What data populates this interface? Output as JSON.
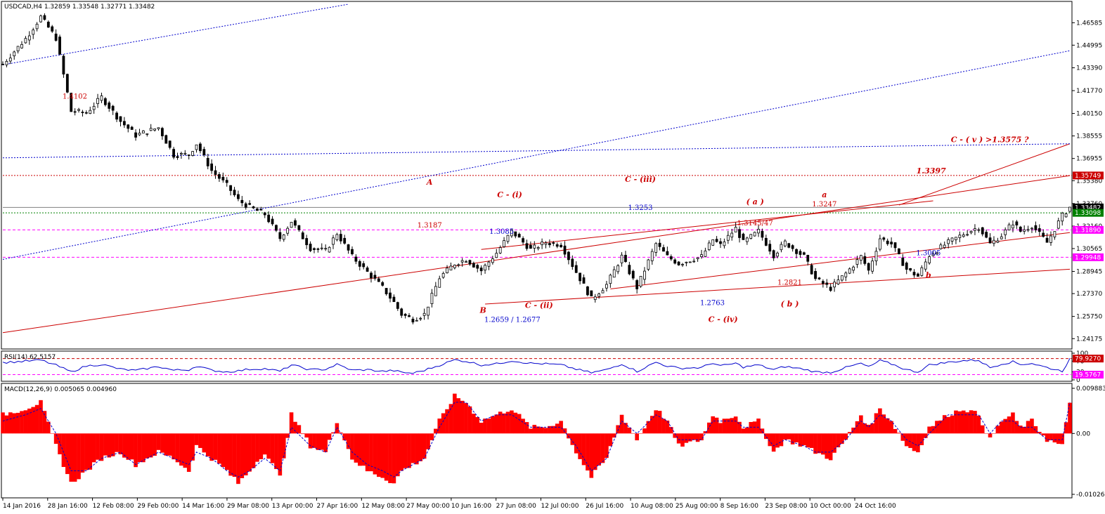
{
  "chart_data": [
    {
      "type": "line",
      "subtype": "candlestick",
      "title": "USDCAD,H4  1.32859 1.33548 1.32771 1.33482",
      "symbol": "USDCAD",
      "timeframe": "H4",
      "ohlc_last": {
        "open": 1.32859,
        "high": 1.33548,
        "low": 1.32771,
        "close": 1.33482
      },
      "ylim": [
        1.2359,
        1.479
      ],
      "y_ticks": [
        "1.46585",
        "1.44995",
        "1.43390",
        "1.41770",
        "1.40150",
        "1.38555",
        "1.36955",
        "1.35380",
        "1.33760",
        "1.32160",
        "1.30565",
        "1.28945",
        "1.27370",
        "1.25750",
        "1.24175"
      ],
      "x_ticks": [
        "14 Jan 2016",
        "28 Jan 16:00",
        "12 Feb 08:00",
        "29 Feb 00:00",
        "14 Mar 16:00",
        "29 Mar 08:00",
        "13 Apr 00:00",
        "27 Apr 16:00",
        "12 May 08:00",
        "27 May 00:00",
        "10 Jun 16:00",
        "27 Jun 08:00",
        "12 Jul 00:00",
        "26 Jul 16:00",
        "10 Aug 08:00",
        "25 Aug 00:00",
        "8 Sep 16:00",
        "23 Sep 08:00",
        "10 Oct 00:00",
        "24 Oct 16:00"
      ],
      "x_tick_index": [
        0,
        1,
        2,
        3,
        4,
        5,
        6,
        7,
        8,
        9,
        10,
        11,
        12,
        13,
        14,
        15,
        16,
        17,
        18,
        19
      ],
      "n_points": 282,
      "series": [
        {
          "color": "#000000",
          "x_bar_index_sample": [
            0,
            6,
            10,
            14,
            18,
            22,
            26,
            31,
            35,
            41,
            45,
            49,
            51,
            55,
            59,
            62,
            65,
            69,
            73,
            76,
            81,
            85,
            88,
            92,
            96,
            100,
            103,
            105,
            108,
            111,
            115,
            119,
            122,
            126,
            130,
            134,
            139,
            143,
            147,
            151,
            155,
            159,
            163,
            167,
            172,
            175,
            178,
            184,
            187,
            189,
            193,
            195,
            199,
            203,
            206,
            211,
            214,
            218,
            222,
            226,
            228,
            231,
            234,
            238,
            241,
            244,
            249,
            253,
            257,
            260,
            263,
            266,
            268,
            271,
            275,
            279,
            281
          ],
          "values": [
            1.4365,
            1.4545,
            1.47,
            1.455,
            1.403,
            1.402,
            1.413,
            1.396,
            1.386,
            1.3915,
            1.372,
            1.3725,
            1.38,
            1.361,
            1.3505,
            1.34,
            1.335,
            1.33,
            1.313,
            1.325,
            1.306,
            1.304,
            1.3165,
            1.3,
            1.289,
            1.278,
            1.2675,
            1.259,
            1.2555,
            1.259,
            1.285,
            1.295,
            1.298,
            1.29,
            1.3025,
            1.318,
            1.305,
            1.31,
            1.3085,
            1.289,
            1.27,
            1.28,
            1.3,
            1.278,
            1.309,
            1.3,
            1.295,
            1.3,
            1.312,
            1.308,
            1.32,
            1.31,
            1.318,
            1.301,
            1.31,
            1.3,
            1.284,
            1.2775,
            1.288,
            1.3,
            1.29,
            1.313,
            1.309,
            1.291,
            1.286,
            1.301,
            1.31,
            1.316,
            1.321,
            1.309,
            1.315,
            1.324,
            1.318,
            1.322,
            1.31,
            1.329,
            1.335
          ]
        }
      ],
      "horizontal_levels": [
        {
          "value": 1.35749,
          "color": "#cc0000",
          "style": "dotted",
          "badge": "1.35749"
        },
        {
          "value": 1.33482,
          "color": "#808080",
          "style": "solid",
          "badge": "1.33482"
        },
        {
          "value": 1.33098,
          "color": "#008000",
          "style": "dotted",
          "badge": "1.33098"
        },
        {
          "value": 1.3189,
          "color": "#ff00ff",
          "style": "dashed",
          "badge": "1.31890"
        },
        {
          "value": 1.29948,
          "color": "#ff00ff",
          "style": "dashed",
          "badge": "1.29948"
        }
      ],
      "trend_lines": [
        {
          "name": "channel-upper",
          "color": "#cc0000",
          "style": "solid",
          "from": {
            "i": 236,
            "y": 1.3365
          },
          "to": {
            "i": 281,
            "y": 1.38
          }
        },
        {
          "name": "channel-mid",
          "color": "#cc0000",
          "style": "solid",
          "from": {
            "i": 0,
            "y": 1.246
          },
          "to": {
            "i": 281,
            "y": 1.3574
          }
        },
        {
          "name": "channel-lower",
          "color": "#cc0000",
          "style": "solid",
          "from": {
            "i": 127,
            "y": 1.2663
          },
          "to": {
            "i": 281,
            "y": 1.291
          }
        },
        {
          "name": "wave-iv-lower",
          "color": "#cc0000",
          "style": "solid",
          "from": {
            "i": 160,
            "y": 1.277
          },
          "to": {
            "i": 281,
            "y": 1.317
          }
        },
        {
          "name": "wave-upper",
          "color": "#cc0000",
          "style": "solid",
          "from": {
            "i": 126,
            "y": 1.305
          },
          "to": {
            "i": 245,
            "y": 1.3395
          }
        },
        {
          "name": "blue-dotted-top",
          "color": "#0000cc",
          "style": "dotted",
          "from": {
            "i": 0,
            "y": 1.436
          },
          "to": {
            "i": 91,
            "y": 1.479
          }
        },
        {
          "name": "blue-dotted-mid",
          "color": "#0000cc",
          "style": "dotted",
          "from": {
            "i": 0,
            "y": 1.298
          },
          "to": {
            "i": 281,
            "y": 1.446
          }
        },
        {
          "name": "blue-dotted-flat",
          "color": "#0000cc",
          "style": "dotted",
          "from": {
            "i": 0,
            "y": 1.37
          },
          "to": {
            "i": 281,
            "y": 1.38
          }
        }
      ]
    },
    {
      "type": "line",
      "title": "RSI(14) 62.5157",
      "ylim": [
        0,
        100
      ],
      "y_ticks": [
        "100",
        "70",
        "30",
        "0"
      ],
      "levels": [
        {
          "value": 79.927,
          "color": "#cc0000",
          "badge": "79.9270"
        },
        {
          "value": 19.5767,
          "color": "#ff00ff",
          "badge": "19.5767"
        }
      ],
      "series": [
        {
          "color": "#0000cc",
          "x_bar_index_sample": [
            0,
            6,
            10,
            14,
            18,
            22,
            26,
            31,
            35,
            41,
            45,
            49,
            51,
            55,
            59,
            62,
            65,
            69,
            73,
            76,
            81,
            85,
            88,
            92,
            96,
            100,
            103,
            105,
            108,
            111,
            115,
            119,
            122,
            126,
            130,
            134,
            139,
            143,
            147,
            151,
            155,
            159,
            163,
            167,
            172,
            175,
            178,
            184,
            187,
            189,
            193,
            195,
            199,
            203,
            206,
            211,
            214,
            218,
            222,
            226,
            228,
            231,
            234,
            238,
            241,
            244,
            249,
            253,
            257,
            260,
            263,
            266,
            268,
            271,
            275,
            279,
            281
          ],
          "values": [
            65,
            70,
            74,
            55,
            30,
            52,
            58,
            40,
            35,
            50,
            36,
            38,
            52,
            36,
            30,
            34,
            40,
            42,
            32,
            56,
            38,
            40,
            58,
            36,
            38,
            32,
            35,
            28,
            25,
            36,
            55,
            75,
            70,
            56,
            60,
            72,
            62,
            60,
            56,
            40,
            27,
            38,
            60,
            32,
            66,
            52,
            44,
            46,
            64,
            52,
            62,
            48,
            56,
            38,
            50,
            40,
            30,
            28,
            46,
            62,
            48,
            72,
            60,
            38,
            30,
            56,
            66,
            72,
            74,
            46,
            60,
            68,
            58,
            62,
            46,
            33,
            78
          ]
        }
      ]
    },
    {
      "type": "bar",
      "title": "MACD(12,26,9) 0.005065 0.004960",
      "ylim": [
        -0.01,
        0.0077
      ],
      "y_ticks": [
        "0.009883",
        "0.00",
        "-0.010261"
      ],
      "series": [
        {
          "name": "histogram",
          "color": "#ff0000",
          "x_bar_index_sample": [
            0,
            6,
            10,
            14,
            18,
            22,
            26,
            31,
            35,
            41,
            45,
            49,
            51,
            55,
            59,
            62,
            65,
            69,
            73,
            76,
            81,
            85,
            88,
            92,
            96,
            100,
            103,
            105,
            108,
            111,
            115,
            119,
            122,
            126,
            130,
            134,
            139,
            143,
            147,
            151,
            155,
            159,
            163,
            167,
            172,
            175,
            178,
            184,
            187,
            189,
            193,
            195,
            199,
            203,
            206,
            211,
            214,
            218,
            222,
            226,
            228,
            231,
            234,
            238,
            241,
            244,
            249,
            253,
            257,
            260,
            263,
            266,
            268,
            271,
            275,
            279,
            281
          ],
          "values": [
            0.003,
            0.004,
            0.005,
            -0.002,
            -0.008,
            -0.006,
            -0.004,
            -0.003,
            -0.005,
            -0.003,
            -0.004,
            -0.006,
            -0.002,
            -0.004,
            -0.006,
            -0.008,
            -0.006,
            -0.003,
            -0.007,
            0.003,
            -0.002,
            -0.003,
            0.002,
            -0.004,
            -0.006,
            -0.007,
            -0.008,
            -0.006,
            -0.005,
            -0.004,
            0.002,
            0.006,
            0.005,
            0.002,
            0.003,
            0.004,
            0.001,
            0.001,
            0.002,
            -0.003,
            -0.007,
            -0.004,
            0.003,
            -0.001,
            0.004,
            0.002,
            -0.002,
            -0.001,
            0.003,
            0.002,
            0.003,
            0.001,
            0.002,
            -0.003,
            -0.001,
            -0.002,
            -0.003,
            -0.004,
            -0.001,
            0.003,
            0.001,
            0.004,
            0.002,
            -0.002,
            -0.003,
            0.001,
            0.003,
            0.004,
            0.003,
            -0.001,
            0.002,
            0.003,
            0.001,
            0.002,
            -0.001,
            -0.002,
            0.005
          ]
        },
        {
          "name": "signal",
          "color": "#0000cc",
          "x_bar_index_sample": [
            0,
            6,
            10,
            14,
            18,
            22,
            26,
            31,
            35,
            41,
            45,
            49,
            51,
            55,
            59,
            62,
            65,
            69,
            73,
            76,
            81,
            85,
            88,
            92,
            96,
            100,
            103,
            105,
            108,
            111,
            115,
            119,
            122,
            126,
            130,
            134,
            139,
            143,
            147,
            151,
            155,
            159,
            163,
            167,
            172,
            175,
            178,
            184,
            187,
            189,
            193,
            195,
            199,
            203,
            206,
            211,
            214,
            218,
            222,
            226,
            228,
            231,
            234,
            238,
            241,
            244,
            249,
            253,
            257,
            260,
            263,
            266,
            268,
            271,
            275,
            279,
            281
          ],
          "values": [
            0.002,
            0.003,
            0.004,
            0.0,
            -0.006,
            -0.006,
            -0.004,
            -0.003,
            -0.005,
            -0.003,
            -0.004,
            -0.005,
            -0.003,
            -0.004,
            -0.006,
            -0.007,
            -0.006,
            -0.004,
            -0.006,
            0.001,
            -0.002,
            -0.003,
            0.001,
            -0.003,
            -0.005,
            -0.006,
            -0.007,
            -0.006,
            -0.005,
            -0.004,
            0.001,
            0.005,
            0.005,
            0.002,
            0.003,
            0.003,
            0.001,
            0.001,
            0.001,
            -0.002,
            -0.006,
            -0.004,
            0.002,
            0.0,
            0.003,
            0.002,
            -0.001,
            -0.001,
            0.002,
            0.002,
            0.002,
            0.001,
            0.001,
            -0.002,
            -0.001,
            -0.002,
            -0.003,
            -0.003,
            -0.001,
            0.002,
            0.001,
            0.003,
            0.002,
            -0.001,
            -0.002,
            0.0,
            0.003,
            0.003,
            0.003,
            0.0,
            0.002,
            0.002,
            0.001,
            0.001,
            -0.001,
            -0.001,
            0.005
          ]
        }
      ]
    }
  ],
  "annotations": [
    {
      "text": "1.4102",
      "color": "#cc0000",
      "style": "plain",
      "i": 27,
      "y": 1.412
    },
    {
      "text": "A",
      "color": "#cc0000",
      "style": "italic",
      "i": 160,
      "y": 1.351
    },
    {
      "text": "1.3187",
      "color": "#cc0000",
      "style": "plain",
      "i": 160,
      "y": 1.3205
    },
    {
      "text": "C - (i)",
      "color": "#cc0000",
      "style": "italic",
      "i": 190,
      "y": 1.342
    },
    {
      "text": "1.3085",
      "color": "#0000cc",
      "style": "plain",
      "i": 187,
      "y": 1.316
    },
    {
      "text": "B",
      "color": "#cc0000",
      "style": "italic",
      "i": 180,
      "y": 1.26
    },
    {
      "text": "1.2659 / 1.2677",
      "color": "#0000cc",
      "style": "plain",
      "i": 191,
      "y": 1.2535
    },
    {
      "text": "C - (ii)",
      "color": "#cc0000",
      "style": "italic",
      "i": 201,
      "y": 1.2635
    },
    {
      "text": "C - (iii)",
      "color": "#cc0000",
      "style": "italic",
      "i": 239,
      "y": 1.353
    },
    {
      "text": "1.3253",
      "color": "#0000cc",
      "style": "plain",
      "i": 239,
      "y": 1.333
    },
    {
      "text": "( a )",
      "color": "#cc0000",
      "style": "italic",
      "i": 282,
      "y": 1.337
    },
    {
      "text": "1.3145/47",
      "color": "#cc0000",
      "style": "plain",
      "i": 282,
      "y": 1.322
    },
    {
      "text": "1.2763",
      "color": "#0000cc",
      "style": "plain",
      "i": 266,
      "y": 1.2655
    },
    {
      "text": "C - (iv)",
      "color": "#cc0000",
      "style": "italic",
      "i": 270,
      "y": 1.2535
    },
    {
      "text": "a",
      "color": "#cc0000",
      "style": "italic",
      "i": 308,
      "y": 1.342
    },
    {
      "text": "1.3247",
      "color": "#cc0000",
      "style": "plain",
      "i": 308,
      "y": 1.3355
    },
    {
      "text": "1.2821",
      "color": "#cc0000",
      "style": "plain",
      "i": 295,
      "y": 1.28
    },
    {
      "text": "( b )",
      "color": "#cc0000",
      "style": "italic",
      "i": 295,
      "y": 1.2645
    },
    {
      "text": "1.3397",
      "color": "#cc0000",
      "style": "italic",
      "i": 348,
      "y": 1.359
    },
    {
      "text": "C - ( v )  >1.3575 ?",
      "color": "#cc0000",
      "style": "italic",
      "i": 370,
      "y": 1.381
    },
    {
      "text": "1.3005",
      "color": "#0000cc",
      "style": "plain",
      "i": 347,
      "y": 1.301
    },
    {
      "text": "b",
      "color": "#cc0000",
      "style": "italic",
      "i": 347,
      "y": 1.285
    }
  ]
}
